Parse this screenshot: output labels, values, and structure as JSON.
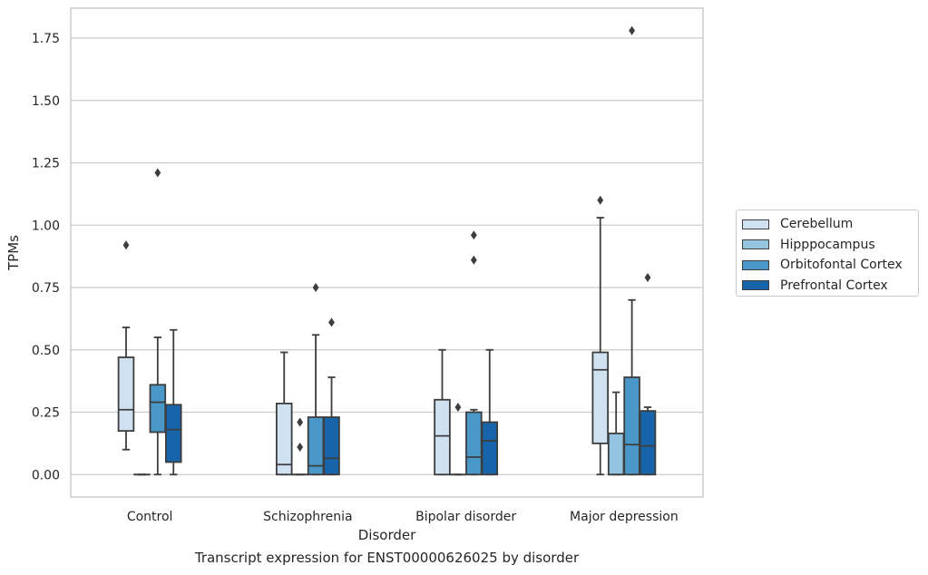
{
  "chart_data": {
    "type": "box",
    "title": "",
    "caption": "Transcript expression for ENST00000626025 by disorder",
    "xlabel": "Disorder",
    "ylabel": "TPMs",
    "ylim": [
      -0.09,
      1.87
    ],
    "yticks": [
      "0.00",
      "0.25",
      "0.50",
      "0.75",
      "1.00",
      "1.25",
      "1.50",
      "1.75"
    ],
    "ytick_values": [
      0,
      0.25,
      0.5,
      0.75,
      1.0,
      1.25,
      1.5,
      1.75
    ],
    "grid": "horizontal",
    "legend_position": "right",
    "categories": [
      "Control",
      "Schizophrenia",
      "Bipolar disorder",
      "Major depression"
    ],
    "series": [
      {
        "name": "Cerebellum",
        "color": "#d0e1f2",
        "boxes": [
          {
            "whisker_low": 0.1,
            "q1": 0.175,
            "median": 0.26,
            "q3": 0.47,
            "whisker_high": 0.59,
            "outliers": [
              0.92
            ]
          },
          {
            "whisker_low": 0.0,
            "q1": 0.0,
            "median": 0.04,
            "q3": 0.285,
            "whisker_high": 0.49,
            "outliers": []
          },
          {
            "whisker_low": 0.0,
            "q1": 0.0,
            "median": 0.155,
            "q3": 0.3,
            "whisker_high": 0.5,
            "outliers": []
          },
          {
            "whisker_low": 0.0,
            "q1": 0.125,
            "median": 0.42,
            "q3": 0.49,
            "whisker_high": 1.03,
            "outliers": [
              1.1
            ]
          }
        ]
      },
      {
        "name": "Hipppocampus",
        "color": "#94c4df",
        "boxes": [
          {
            "whisker_low": 0.0,
            "q1": 0.0,
            "median": 0.0,
            "q3": 0.0,
            "whisker_high": 0.0,
            "outliers": []
          },
          {
            "whisker_low": 0.0,
            "q1": 0.0,
            "median": 0.0,
            "q3": 0.0,
            "whisker_high": 0.0,
            "outliers": [
              0.11,
              0.21
            ]
          },
          {
            "whisker_low": 0.0,
            "q1": 0.0,
            "median": 0.0,
            "q3": 0.0,
            "whisker_high": 0.0,
            "outliers": [
              0.27
            ]
          },
          {
            "whisker_low": 0.0,
            "q1": 0.0,
            "median": 0.0,
            "q3": 0.165,
            "whisker_high": 0.33,
            "outliers": []
          }
        ]
      },
      {
        "name": "Orbitofontal Cortex",
        "color": "#4a98c9",
        "boxes": [
          {
            "whisker_low": 0.0,
            "q1": 0.17,
            "median": 0.29,
            "q3": 0.36,
            "whisker_high": 0.55,
            "outliers": [
              1.21
            ]
          },
          {
            "whisker_low": 0.0,
            "q1": 0.0,
            "median": 0.035,
            "q3": 0.23,
            "whisker_high": 0.56,
            "outliers": [
              0.75
            ]
          },
          {
            "whisker_low": 0.0,
            "q1": 0.0,
            "median": 0.07,
            "q3": 0.25,
            "whisker_high": 0.26,
            "outliers": [
              0.86,
              0.96
            ]
          },
          {
            "whisker_low": 0.0,
            "q1": 0.0,
            "median": 0.12,
            "q3": 0.39,
            "whisker_high": 0.7,
            "outliers": [
              1.78
            ]
          }
        ]
      },
      {
        "name": "Prefrontal Cortex",
        "color": "#1764ab",
        "boxes": [
          {
            "whisker_low": 0.0,
            "q1": 0.05,
            "median": 0.18,
            "q3": 0.28,
            "whisker_high": 0.58,
            "outliers": []
          },
          {
            "whisker_low": 0.0,
            "q1": 0.0,
            "median": 0.065,
            "q3": 0.23,
            "whisker_high": 0.39,
            "outliers": [
              0.61
            ]
          },
          {
            "whisker_low": 0.0,
            "q1": 0.0,
            "median": 0.135,
            "q3": 0.21,
            "whisker_high": 0.5,
            "outliers": []
          },
          {
            "whisker_low": 0.0,
            "q1": 0.0,
            "median": 0.115,
            "q3": 0.255,
            "whisker_high": 0.27,
            "outliers": [
              0.79
            ]
          }
        ]
      }
    ]
  }
}
